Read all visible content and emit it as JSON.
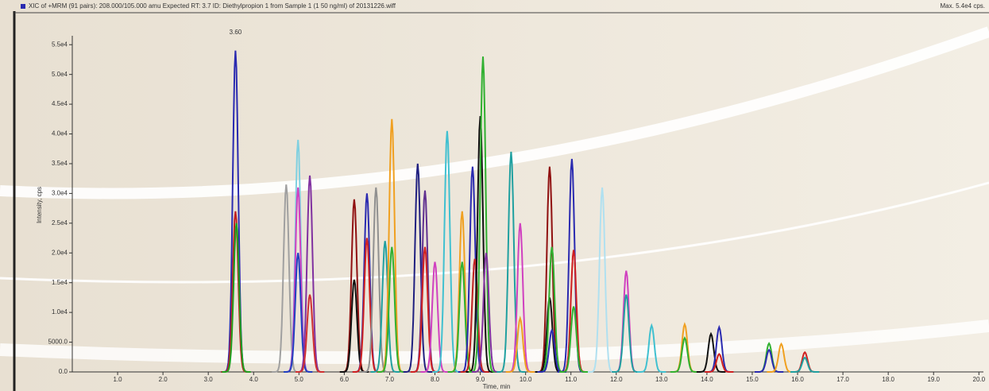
{
  "chart_data": {
    "type": "chromatogram",
    "title": "XIC of +MRM (91 pairs): 208.000/105.000 amu Expected RT: 3.7 ID: Diethylpropion 1 from Sample 1 (1 50 ng/ml) of 20131226.wiff",
    "max_label": "Max. 5.4e4 cps.",
    "xlabel": "Time, min",
    "ylabel": "Intensity, cps",
    "annotations": [
      {
        "text": "3.60",
        "x": 3.6
      }
    ],
    "xlim": [
      0,
      20.1
    ],
    "ylim": [
      0,
      56500
    ],
    "xticks": [
      {
        "value": 1,
        "label": "1.0"
      },
      {
        "value": 2,
        "label": "2.0"
      },
      {
        "value": 3,
        "label": "3.0"
      },
      {
        "value": 4,
        "label": "4.0"
      },
      {
        "value": 5,
        "label": "5.0"
      },
      {
        "value": 6,
        "label": "6.0"
      },
      {
        "value": 7,
        "label": "7.0"
      },
      {
        "value": 8,
        "label": "8.0"
      },
      {
        "value": 9,
        "label": "9.0"
      },
      {
        "value": 10,
        "label": "10.0"
      },
      {
        "value": 11,
        "label": "11.0"
      },
      {
        "value": 12,
        "label": "12.0"
      },
      {
        "value": 13,
        "label": "13.0"
      },
      {
        "value": 14,
        "label": "14.0"
      },
      {
        "value": 15,
        "label": "15.0"
      },
      {
        "value": 16,
        "label": "16.0"
      },
      {
        "value": 17,
        "label": "17.0"
      },
      {
        "value": 18,
        "label": "18.0"
      },
      {
        "value": 19,
        "label": "19.0"
      },
      {
        "value": 20,
        "label": "20.0"
      }
    ],
    "yticks": [
      {
        "value": 0,
        "label": "0.0"
      },
      {
        "value": 5000,
        "label": "5000.0"
      },
      {
        "value": 10000,
        "label": "1.0e4"
      },
      {
        "value": 15000,
        "label": "1.5e4"
      },
      {
        "value": 20000,
        "label": "2.0e4"
      },
      {
        "value": 25000,
        "label": "2.5e4"
      },
      {
        "value": 30000,
        "label": "3.0e4"
      },
      {
        "value": 35000,
        "label": "3.5e4"
      },
      {
        "value": 40000,
        "label": "4.0e4"
      },
      {
        "value": 45000,
        "label": "4.5e4"
      },
      {
        "value": 50000,
        "label": "5.0e4"
      },
      {
        "value": 55000,
        "label": "5.5e4"
      }
    ],
    "peaks": [
      {
        "x": 3.6,
        "y": 54000,
        "color": "#2a2ab0"
      },
      {
        "x": 3.6,
        "y": 27000,
        "color": "#c02020"
      },
      {
        "x": 3.62,
        "y": 25000,
        "color": "#20a020"
      },
      {
        "x": 4.72,
        "y": 31500,
        "color": "#a0a0a0"
      },
      {
        "x": 4.98,
        "y": 39000,
        "color": "#80d0e0"
      },
      {
        "x": 4.98,
        "y": 31000,
        "color": "#d040c0"
      },
      {
        "x": 4.98,
        "y": 20000,
        "color": "#2040c0"
      },
      {
        "x": 5.24,
        "y": 33000,
        "color": "#8030a0"
      },
      {
        "x": 5.24,
        "y": 13000,
        "color": "#d03030"
      },
      {
        "x": 6.22,
        "y": 29000,
        "color": "#901010"
      },
      {
        "x": 6.22,
        "y": 15500,
        "color": "#101010"
      },
      {
        "x": 6.5,
        "y": 30000,
        "color": "#2a2ab0"
      },
      {
        "x": 6.5,
        "y": 22500,
        "color": "#d02020"
      },
      {
        "x": 6.7,
        "y": 31000,
        "color": "#909090"
      },
      {
        "x": 6.9,
        "y": 22000,
        "color": "#20a0a0"
      },
      {
        "x": 7.05,
        "y": 42500,
        "color": "#f0a020"
      },
      {
        "x": 7.05,
        "y": 21000,
        "color": "#30b030"
      },
      {
        "x": 7.62,
        "y": 35000,
        "color": "#202080"
      },
      {
        "x": 7.78,
        "y": 30500,
        "color": "#603090"
      },
      {
        "x": 7.78,
        "y": 21000,
        "color": "#d02020"
      },
      {
        "x": 8.0,
        "y": 18500,
        "color": "#d040c0"
      },
      {
        "x": 8.27,
        "y": 40500,
        "color": "#40c0d0"
      },
      {
        "x": 8.6,
        "y": 27000,
        "color": "#f0a020"
      },
      {
        "x": 8.6,
        "y": 18500,
        "color": "#30b030"
      },
      {
        "x": 8.83,
        "y": 34500,
        "color": "#2a2ab0"
      },
      {
        "x": 8.88,
        "y": 19000,
        "color": "#c02020"
      },
      {
        "x": 9.0,
        "y": 43000,
        "color": "#101010"
      },
      {
        "x": 9.06,
        "y": 53000,
        "color": "#30b030"
      },
      {
        "x": 9.13,
        "y": 20000,
        "color": "#8030a0"
      },
      {
        "x": 9.68,
        "y": 37000,
        "color": "#20a0a0"
      },
      {
        "x": 9.88,
        "y": 25000,
        "color": "#d040c0"
      },
      {
        "x": 9.88,
        "y": 9000,
        "color": "#f0a020"
      },
      {
        "x": 10.53,
        "y": 34500,
        "color": "#901010"
      },
      {
        "x": 10.53,
        "y": 12500,
        "color": "#101010"
      },
      {
        "x": 10.58,
        "y": 21000,
        "color": "#30b030"
      },
      {
        "x": 10.58,
        "y": 7000,
        "color": "#2a2ab0"
      },
      {
        "x": 11.02,
        "y": 35800,
        "color": "#2a2ab0"
      },
      {
        "x": 11.06,
        "y": 20500,
        "color": "#d02020"
      },
      {
        "x": 11.06,
        "y": 11000,
        "color": "#30b030"
      },
      {
        "x": 11.69,
        "y": 31000,
        "color": "#b0e0f0"
      },
      {
        "x": 12.22,
        "y": 17000,
        "color": "#d040c0"
      },
      {
        "x": 12.22,
        "y": 13000,
        "color": "#20a0a0"
      },
      {
        "x": 12.78,
        "y": 7800,
        "color": "#40c0d0"
      },
      {
        "x": 13.51,
        "y": 8000,
        "color": "#f0a020"
      },
      {
        "x": 13.51,
        "y": 5700,
        "color": "#30b030"
      },
      {
        "x": 14.09,
        "y": 6400,
        "color": "#101010"
      },
      {
        "x": 14.27,
        "y": 7500,
        "color": "#2a2ab0"
      },
      {
        "x": 14.27,
        "y": 3000,
        "color": "#d02020"
      },
      {
        "x": 15.37,
        "y": 4800,
        "color": "#30b030"
      },
      {
        "x": 15.37,
        "y": 3700,
        "color": "#2a2ab0"
      },
      {
        "x": 15.64,
        "y": 4700,
        "color": "#f0a020"
      },
      {
        "x": 16.16,
        "y": 3300,
        "color": "#d02020"
      },
      {
        "x": 16.16,
        "y": 2400,
        "color": "#20a0a0"
      }
    ]
  }
}
